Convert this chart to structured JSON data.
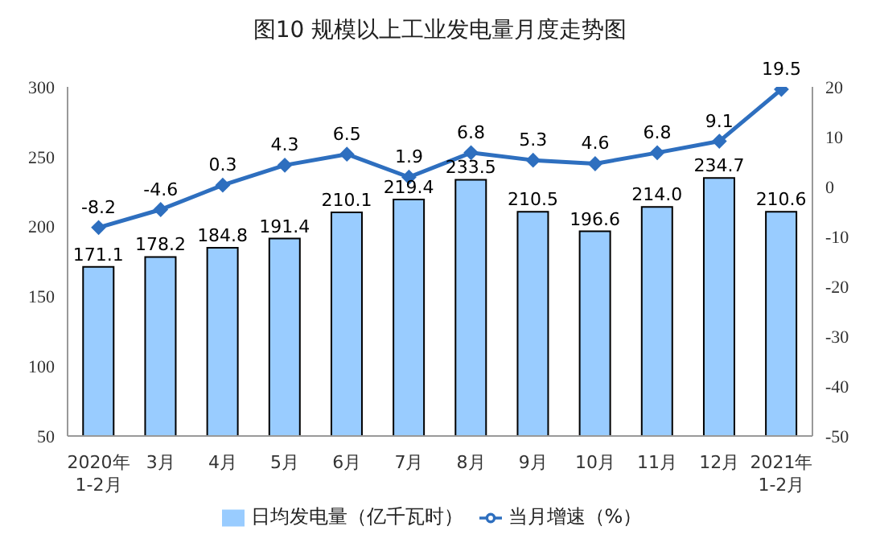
{
  "chart_data": {
    "type": "bar",
    "title": "图10  规模以上工业发电量月度走势图",
    "categories": [
      "2020年\n1-2月",
      "3月",
      "4月",
      "5月",
      "6月",
      "7月",
      "8月",
      "9月",
      "10月",
      "11月",
      "12月",
      "2021年\n1-2月"
    ],
    "series": [
      {
        "name": "日均发电量（亿千瓦时）",
        "color": "#99ccff",
        "values": [
          171.1,
          178.2,
          184.8,
          191.4,
          210.1,
          219.4,
          233.5,
          210.5,
          196.6,
          214.0,
          234.7,
          210.6
        ],
        "value_labels": [
          "171.1",
          "178.2",
          "184.8",
          "191.4",
          "210.1",
          "219.4",
          "233.5",
          "210.5",
          "196.6",
          "214.0",
          "234.7",
          "210.6"
        ]
      },
      {
        "name": "当月增速（%）",
        "type": "line",
        "axis": "y2",
        "color": "#2e6fbf",
        "values": [
          -8.2,
          -4.6,
          0.3,
          4.3,
          6.5,
          1.9,
          6.8,
          5.3,
          4.6,
          6.8,
          9.1,
          19.5
        ]
      }
    ],
    "ylim": [
      50,
      300
    ],
    "yticks": [
      50,
      100,
      150,
      200,
      250,
      300
    ],
    "y2lim": [
      -50,
      20
    ],
    "y2ticks": [
      -50,
      -40,
      -30,
      -20,
      -10,
      0,
      10,
      20
    ],
    "data_labels": true,
    "grid": false,
    "legend": "bottom",
    "marker": "diamond",
    "line_style": "solid"
  }
}
